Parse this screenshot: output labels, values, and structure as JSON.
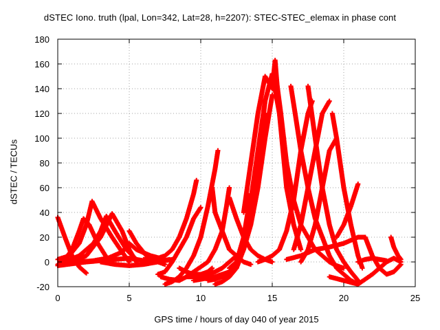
{
  "chart_data": {
    "type": "scatter",
    "title": "dSTEC Iono. truth (lpal, Lon=342, Lat=28, h=2207): STEC-STEC_elemax in phase cont",
    "xlabel": "GPS time / hours of day 040 of year 2015",
    "ylabel": "dSTEC  / TECUs",
    "xlim": [
      0,
      25
    ],
    "ylim": [
      -20,
      180
    ],
    "xticks": [
      0,
      5,
      10,
      15,
      20,
      25
    ],
    "yticks": [
      -20,
      0,
      20,
      40,
      60,
      80,
      100,
      120,
      140,
      160,
      180
    ],
    "grid": true,
    "marker": "+",
    "color": "#ff0000",
    "series": [
      {
        "x": [
          0.0,
          0.5,
          1.0,
          1.5,
          2.0
        ],
        "y": [
          36,
          20,
          5,
          -4,
          -9
        ]
      },
      {
        "x": [
          0.0,
          0.5,
          1.0,
          1.5,
          1.8,
          2.2,
          2.8,
          3.5
        ],
        "y": [
          -2,
          2,
          10,
          25,
          35,
          30,
          15,
          2
        ]
      },
      {
        "x": [
          0.0,
          0.8,
          1.5,
          2.0,
          2.4,
          3.0,
          3.8,
          4.5,
          5.0
        ],
        "y": [
          2,
          5,
          15,
          30,
          49,
          35,
          20,
          8,
          0
        ]
      },
      {
        "x": [
          0.5,
          1.5,
          2.5,
          3.0,
          3.4,
          4.0,
          4.8,
          5.5
        ],
        "y": [
          0,
          5,
          15,
          25,
          37,
          25,
          10,
          2
        ]
      },
      {
        "x": [
          1.0,
          2.0,
          3.0,
          3.8,
          4.5,
          5.0,
          5.5
        ],
        "y": [
          0,
          5,
          20,
          39,
          25,
          10,
          0
        ]
      },
      {
        "x": [
          1.5,
          2.5,
          3.5,
          4.5,
          5.0,
          5.5,
          6.5,
          7.5
        ],
        "y": [
          0,
          1,
          3,
          8,
          15,
          10,
          5,
          2
        ]
      },
      {
        "x": [
          0.0,
          2.0,
          4.0,
          5.0,
          6.0,
          7.0,
          8.0
        ],
        "y": [
          -3,
          0,
          2,
          3,
          1,
          0,
          2
        ]
      },
      {
        "x": [
          5.0,
          5.5,
          6.2,
          7.0,
          7.5
        ],
        "y": [
          25,
          15,
          5,
          0,
          -2
        ]
      },
      {
        "x": [
          3.0,
          4.0,
          5.0,
          6.0,
          7.0,
          7.8
        ],
        "y": [
          0,
          -2,
          -3,
          -2,
          0,
          2
        ]
      },
      {
        "x": [
          6.0,
          7.0,
          7.5,
          8.0,
          8.5,
          9.0,
          9.5,
          9.7
        ],
        "y": [
          2,
          3,
          5,
          10,
          20,
          35,
          55,
          66
        ]
      },
      {
        "x": [
          7.0,
          7.5,
          8.0,
          8.5,
          9.0,
          9.5,
          10.0
        ],
        "y": [
          -10,
          -8,
          0,
          10,
          20,
          35,
          44
        ]
      },
      {
        "x": [
          7.5,
          8.0,
          8.5,
          9.0,
          9.5,
          10.0,
          10.5,
          11.0,
          11.2
        ],
        "y": [
          -18,
          -16,
          -12,
          -5,
          5,
          20,
          45,
          75,
          90
        ]
      },
      {
        "x": [
          7.2,
          7.8,
          8.5,
          9.0,
          9.5,
          10.0,
          10.5,
          11.0,
          11.5,
          11.8,
          12.0
        ],
        "y": [
          -12,
          -14,
          -15,
          -12,
          -8,
          -4,
          0,
          10,
          25,
          45,
          60
        ]
      },
      {
        "x": [
          8.5,
          9.0,
          9.5,
          10.0,
          10.5,
          10.8
        ],
        "y": [
          -5,
          -8,
          -10,
          -10,
          -8,
          -5
        ]
      },
      {
        "x": [
          9.0,
          9.5,
          10.0,
          10.5,
          11.0,
          11.5,
          12.0,
          12.5
        ],
        "y": [
          -12,
          -12,
          -11,
          -10,
          -8,
          -5,
          0,
          5
        ]
      },
      {
        "x": [
          9.5,
          10.0,
          10.5,
          11.0,
          11.5,
          12.0,
          12.5,
          13.0,
          13.5
        ],
        "y": [
          -15,
          -14,
          -13,
          -12,
          -10,
          -8,
          0,
          15,
          38
        ]
      },
      {
        "x": [
          10.5,
          11.0,
          11.5,
          12.0,
          12.5,
          13.0,
          13.5,
          14.0,
          14.5
        ],
        "y": [
          -15,
          -14,
          -12,
          -8,
          0,
          20,
          50,
          90,
          130
        ]
      },
      {
        "x": [
          11.0,
          11.5,
          12.0,
          12.5,
          13.0,
          13.5
        ],
        "y": [
          -18,
          -16,
          -12,
          -5,
          20,
          55
        ]
      },
      {
        "x": [
          11.5,
          12.0,
          12.5,
          13.0,
          13.5,
          14.0,
          14.5
        ],
        "y": [
          -12,
          -10,
          -5,
          10,
          40,
          80,
          120
        ]
      },
      {
        "x": [
          12.0,
          12.5,
          13.0,
          13.5,
          14.0,
          14.5,
          15.0
        ],
        "y": [
          -5,
          0,
          10,
          30,
          60,
          100,
          135
        ]
      },
      {
        "x": [
          10.8,
          11.0,
          11.5,
          12.0,
          12.5,
          13.0,
          13.5
        ],
        "y": [
          60,
          40,
          25,
          10,
          5,
          0,
          -2
        ]
      },
      {
        "x": [
          12.0,
          12.5,
          13.0,
          13.5,
          14.0,
          14.5,
          15.0
        ],
        "y": [
          52,
          35,
          20,
          10,
          5,
          2,
          0
        ]
      },
      {
        "x": [
          12.5,
          13.0,
          13.5,
          14.0,
          14.5,
          15.0,
          15.5,
          16.0
        ],
        "y": [
          0,
          10,
          40,
          80,
          130,
          152,
          120,
          80
        ]
      },
      {
        "x": [
          13.0,
          13.5,
          14.0,
          14.5,
          15.0,
          15.2,
          15.5,
          16.0,
          16.5,
          17.0
        ],
        "y": [
          40,
          80,
          120,
          150,
          140,
          163,
          120,
          60,
          30,
          10
        ]
      },
      {
        "x": [
          15.2,
          15.6,
          16.0,
          16.5,
          17.0,
          17.5,
          18.0,
          18.5,
          19.0,
          19.5,
          20.0
        ],
        "y": [
          155,
          120,
          80,
          50,
          30,
          20,
          10,
          5,
          0,
          -3,
          -5
        ]
      },
      {
        "x": [
          14.0,
          14.5,
          15.0,
          15.5,
          16.0,
          16.5,
          17.0,
          17.5,
          17.8
        ],
        "y": [
          0,
          2,
          5,
          10,
          25,
          50,
          90,
          120,
          130
        ]
      },
      {
        "x": [
          16.3,
          16.6,
          17.0,
          17.5,
          18.0,
          18.5,
          19.0,
          19.5,
          20.0,
          20.5,
          21.0
        ],
        "y": [
          142,
          120,
          90,
          60,
          35,
          20,
          5,
          -5,
          -10,
          -15,
          -18
        ]
      },
      {
        "x": [
          16.5,
          17.0,
          17.5,
          18.0,
          18.5,
          19.0
        ],
        "y": [
          10,
          30,
          60,
          90,
          120,
          130
        ]
      },
      {
        "x": [
          17.5,
          18.0,
          18.5,
          19.0,
          19.5,
          20.0,
          20.5,
          21.0
        ],
        "y": [
          142,
          100,
          60,
          30,
          10,
          0,
          -8,
          -15
        ]
      },
      {
        "x": [
          17.0,
          17.5,
          18.0,
          18.5,
          19.0,
          19.5
        ],
        "y": [
          0,
          10,
          30,
          60,
          90,
          100
        ]
      },
      {
        "x": [
          19.2,
          19.5,
          20.0,
          20.5,
          21.0,
          21.3
        ],
        "y": [
          120,
          100,
          60,
          30,
          5,
          -5
        ]
      },
      {
        "x": [
          19.5,
          20.0,
          20.5,
          21.0
        ],
        "y": [
          20,
          30,
          45,
          63
        ]
      },
      {
        "x": [
          16.0,
          17.0,
          18.0,
          19.0,
          20.0,
          21.0,
          21.5
        ],
        "y": [
          2,
          5,
          10,
          12,
          15,
          20,
          20
        ]
      },
      {
        "x": [
          19.0,
          20.0,
          21.0,
          22.0,
          22.5,
          23.0,
          23.5,
          24.0
        ],
        "y": [
          -12,
          -15,
          -18,
          -10,
          -5,
          0,
          3,
          0
        ]
      },
      {
        "x": [
          21.5,
          22.0,
          22.5,
          23.0,
          23.5,
          24.0
        ],
        "y": [
          20,
          5,
          -5,
          -10,
          -8,
          -2
        ]
      },
      {
        "x": [
          21.0,
          21.5,
          22.0,
          22.5,
          23.0
        ],
        "y": [
          0,
          2,
          3,
          2,
          1
        ]
      },
      {
        "x": [
          23.3,
          23.5,
          23.8,
          24.0
        ],
        "y": [
          20,
          12,
          5,
          2
        ]
      }
    ]
  }
}
